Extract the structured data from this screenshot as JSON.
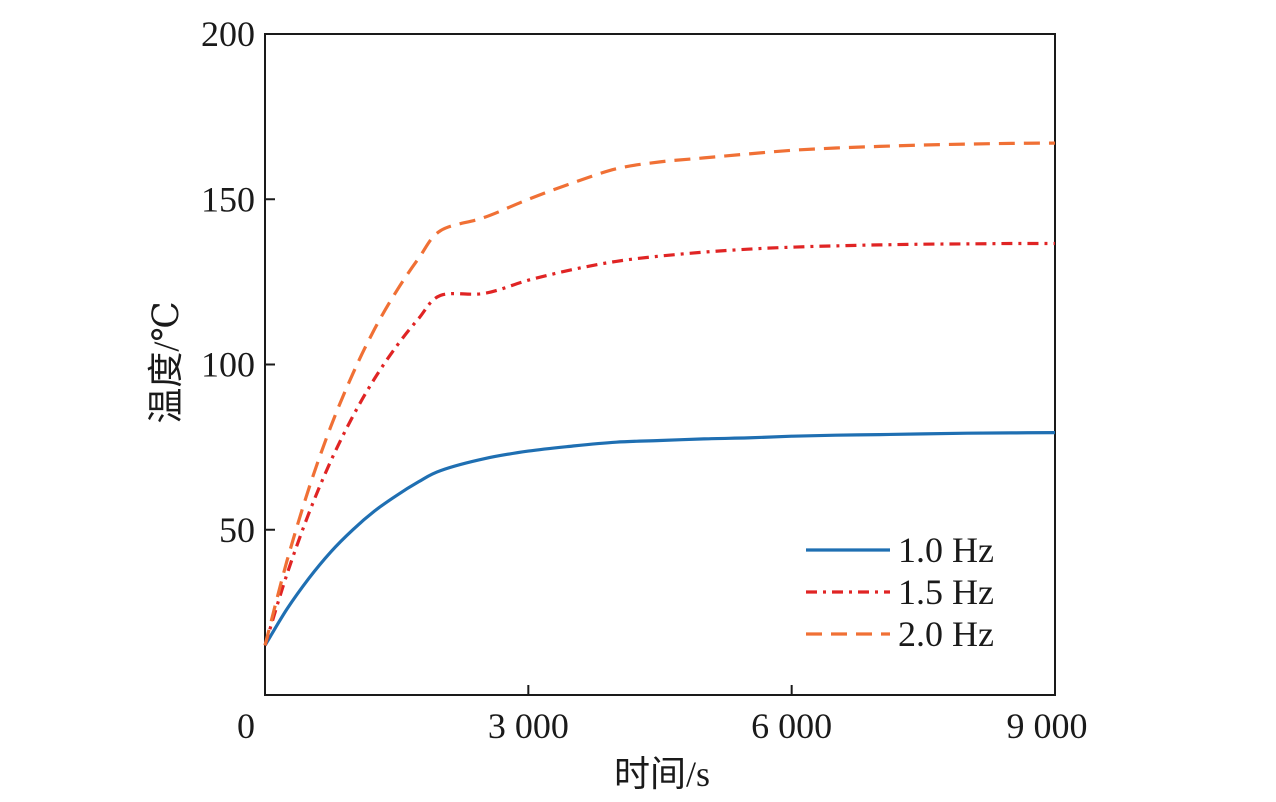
{
  "chart_data": {
    "type": "line",
    "xlabel": "时间/s",
    "ylabel": "温度/℃",
    "xlim": [
      0,
      9000
    ],
    "ylim": [
      0,
      200
    ],
    "x_ticks": [
      0,
      3000,
      6000,
      9000
    ],
    "x_tick_labels": [
      "0",
      "3 000",
      "6 000",
      "9 000"
    ],
    "y_ticks": [
      50,
      100,
      150,
      200
    ],
    "y_tick_labels": [
      "50",
      "100",
      "150",
      "200"
    ],
    "grid": false,
    "legend_position": "bottom-right",
    "x": [
      0,
      250,
      500,
      750,
      1000,
      1250,
      1500,
      1750,
      2000,
      2500,
      3000,
      3500,
      4000,
      4500,
      5000,
      5500,
      6000,
      6500,
      7000,
      7500,
      8000,
      8500,
      9000
    ],
    "series": [
      {
        "name": "1.0 Hz",
        "color": "#1f6fb2",
        "dash": "solid",
        "values": [
          15.0,
          26.0,
          35.3,
          43.3,
          50.0,
          55.7,
          60.4,
          64.5,
          67.9,
          71.5,
          73.8,
          75.3,
          76.5,
          77.0,
          77.5,
          77.8,
          78.3,
          78.6,
          78.8,
          79.0,
          79.2,
          79.3,
          79.4
        ]
      },
      {
        "name": "1.5 Hz",
        "color": "#e02424",
        "dash": "dashdot",
        "values": [
          15.0,
          36.5,
          55.0,
          70.8,
          84.3,
          95.8,
          105.6,
          113.9,
          120.9,
          121.5,
          125.5,
          128.7,
          131.2,
          132.8,
          134.0,
          134.9,
          135.5,
          135.9,
          136.2,
          136.4,
          136.5,
          136.6,
          136.6
        ]
      },
      {
        "name": "2.0 Hz",
        "color": "#f07035",
        "dash": "dashed",
        "values": [
          15.0,
          40.5,
          62.5,
          81.2,
          97.2,
          110.8,
          122.3,
          132.1,
          140.5,
          144.5,
          150.0,
          154.9,
          159.2,
          161.3,
          162.5,
          163.7,
          164.8,
          165.5,
          166.0,
          166.4,
          166.7,
          166.9,
          167.0
        ]
      }
    ]
  }
}
